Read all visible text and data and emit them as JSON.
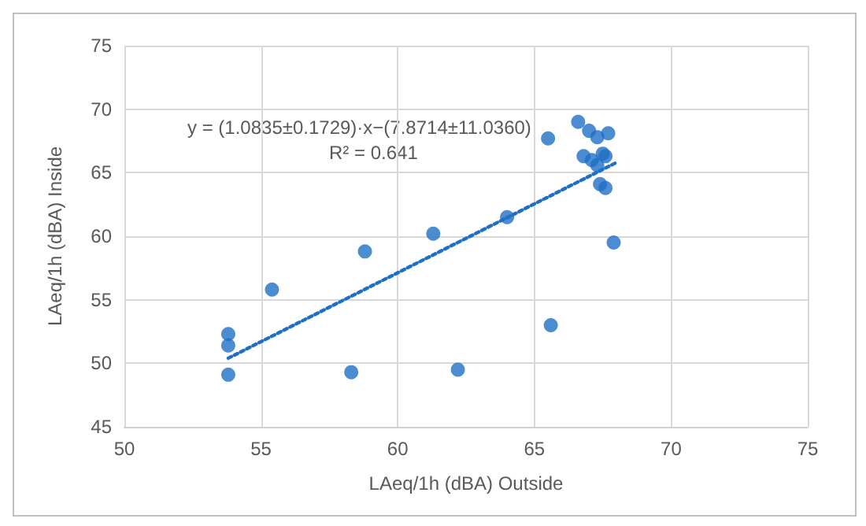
{
  "chart_data": {
    "type": "scatter",
    "xlabel": "LAeq/1h (dBA) Outside",
    "ylabel": "LAeq/1h (dBA) Inside",
    "annotations": [
      "y = (1.0835±0.1729)·x−(7.8714±11.0360)",
      "R² = 0.641"
    ],
    "xlim": [
      50,
      75
    ],
    "xticks": [
      50,
      55,
      60,
      65,
      70,
      75
    ],
    "ylim": [
      45,
      75
    ],
    "yticks": [
      45,
      50,
      55,
      60,
      65,
      70,
      75
    ],
    "grid": true,
    "series": [
      {
        "color": "#1f6fc5",
        "marker": "circle",
        "x": [
          53.8,
          53.8,
          53.8,
          55.4,
          58.8,
          58.3,
          61.3,
          62.2,
          64.0,
          65.5,
          66.6,
          67.0,
          67.3,
          67.7,
          66.8,
          67.1,
          67.3,
          67.5,
          67.6,
          67.4,
          67.6,
          67.9,
          65.6
        ],
        "values": [
          52.3,
          51.4,
          49.1,
          55.8,
          58.8,
          49.3,
          60.2,
          49.5,
          61.5,
          67.7,
          69.0,
          68.3,
          67.8,
          68.1,
          66.3,
          66.0,
          65.6,
          66.5,
          66.3,
          64.1,
          63.8,
          59.5,
          53.0
        ]
      },
      {
        "type": "line",
        "color": "#1f6fc5",
        "marker": "none",
        "line_style": "dotted",
        "x": [
          53.8,
          68.0
        ],
        "values": [
          50.4,
          65.8
        ]
      }
    ]
  }
}
